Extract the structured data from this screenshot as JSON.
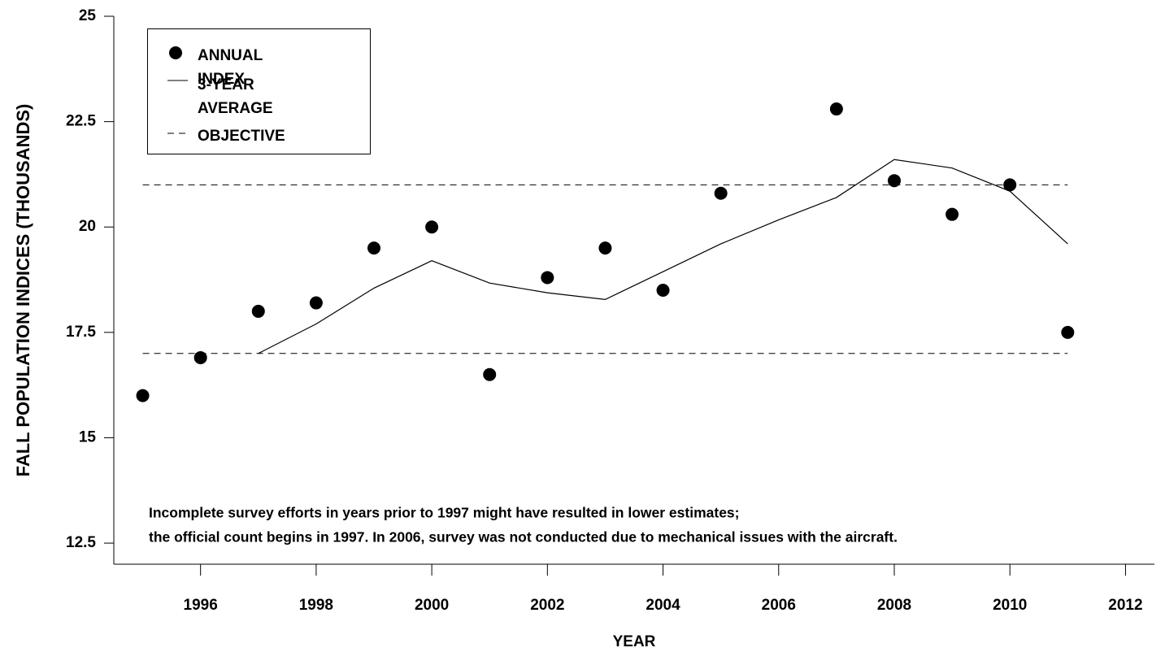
{
  "chart_data": {
    "type": "line",
    "y_label": "FALL POPULATION INDICES (THOUSANDS)",
    "x_label": "YEAR",
    "x": [
      1995,
      1996,
      1997,
      1998,
      1999,
      2000,
      2001,
      2002,
      2003,
      2004,
      2005,
      2006,
      2007,
      2008,
      2009,
      2010,
      2011
    ],
    "series": [
      {
        "name": "ANNUAL INDEX",
        "style": "marker",
        "color": "#000000",
        "values": [
          16.0,
          16.9,
          18.0,
          18.2,
          19.5,
          20.0,
          16.5,
          18.8,
          19.5,
          18.5,
          20.8,
          null,
          22.8,
          21.1,
          20.3,
          21.0,
          17.5
        ]
      },
      {
        "name": "3-YEAR AVERAGE",
        "style": "line",
        "color": "#000000",
        "values": [
          null,
          null,
          17.0,
          17.7,
          18.55,
          19.2,
          18.67,
          18.44,
          18.28,
          18.94,
          19.6,
          20.17,
          20.7,
          21.6,
          21.4,
          20.85,
          19.6
        ]
      }
    ],
    "objective": {
      "name": "OBJECTIVE",
      "values": [
        17,
        21
      ],
      "color": "#000000"
    },
    "annotations": [
      "Incomplete survey efforts in years prior to 1997 might have resulted in lower estimates;",
      "the official count begins in 1997. In 2006, survey was not conducted due to mechanical issues with the aircraft."
    ],
    "xlim": [
      1994.5,
      2012.5
    ],
    "xticks": [
      1996,
      1998,
      2000,
      2002,
      2004,
      2006,
      2008,
      2010,
      2012
    ],
    "ylim": [
      12,
      25
    ],
    "yticks": [
      12.5,
      15,
      17.5,
      20,
      22.5,
      25
    ],
    "grid": false,
    "legend": "upper left"
  }
}
